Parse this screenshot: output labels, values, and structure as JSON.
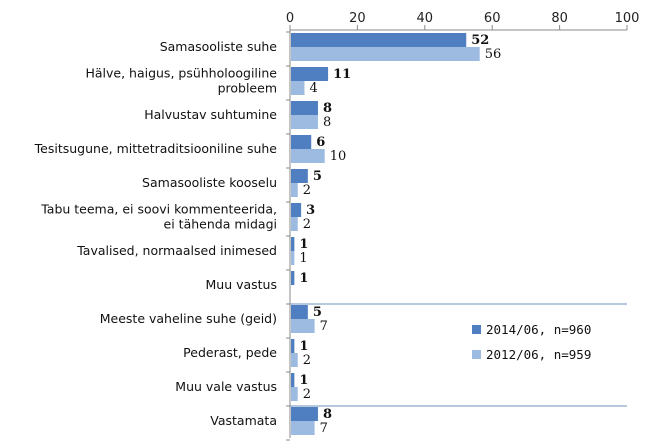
{
  "chart_data": {
    "type": "bar",
    "orientation": "horizontal",
    "xlim": [
      0,
      100
    ],
    "x_ticks": [
      0,
      20,
      40,
      60,
      80,
      100
    ],
    "x_axis_position": "top",
    "categories": [
      [
        "Samasooliste suhe"
      ],
      [
        "Hälve, haigus, psühholoogiline",
        "probleem"
      ],
      [
        "Halvustav suhtumine"
      ],
      [
        "Tesitsugune, mittetraditsiooniline  suhe"
      ],
      [
        "Samasooliste kooselu"
      ],
      [
        "Tabu teema, ei soovi kommenteerida,",
        "ei tähenda midagi"
      ],
      [
        "Tavalised, normaalsed inimesed"
      ],
      [
        "Muu vastus"
      ],
      [
        "Meeste vaheline suhe (geid)"
      ],
      [
        "Pederast, pede"
      ],
      [
        "Muu vale vastus"
      ],
      [
        "Vastamata"
      ]
    ],
    "series": [
      {
        "name": "2014/06, n=960",
        "color": "#4f7fc0",
        "values": [
          52,
          11,
          8,
          6,
          5,
          3,
          1,
          1,
          5,
          1,
          1,
          8
        ]
      },
      {
        "name": "2012/06, n=959",
        "color": "#9dbbe1",
        "values": [
          56,
          4,
          8,
          10,
          2,
          2,
          1,
          null,
          7,
          2,
          2,
          7
        ]
      }
    ],
    "group_separators_after": [
      7,
      10
    ],
    "legend_position": "right, between groups"
  }
}
